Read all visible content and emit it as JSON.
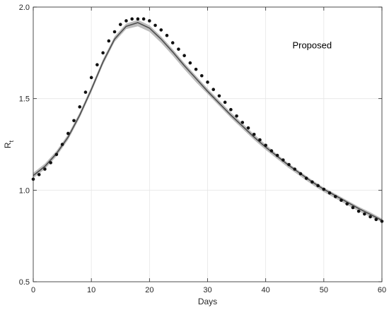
{
  "chart_data": {
    "type": "line",
    "title": "",
    "xlabel": "Days",
    "ylabel_main": "R",
    "ylabel_sub": "t",
    "annotation": "Proposed",
    "xlim": [
      0,
      60
    ],
    "ylim": [
      0.5,
      2.0
    ],
    "xticks": [
      0,
      10,
      20,
      30,
      40,
      50,
      60
    ],
    "yticks": [
      0.5,
      1.0,
      1.5,
      2.0
    ],
    "xtick_labels": [
      "0",
      "10",
      "20",
      "30",
      "40",
      "50",
      "60"
    ],
    "ytick_labels": [
      "0.5",
      "1.0",
      "1.5",
      "2.0"
    ],
    "grid": true,
    "colors": {
      "band": "#bdbdbd",
      "line": "#4d4d4d",
      "points": "#111111",
      "grid": "#e6e6e6",
      "axis": "#262626"
    },
    "series": [
      {
        "kind": "band",
        "x": [
          0,
          2,
          4,
          6,
          8,
          10,
          12,
          14,
          16,
          18,
          20,
          22,
          24,
          26,
          28,
          30,
          32,
          34,
          36,
          38,
          40,
          42,
          44,
          46,
          48,
          50,
          52,
          54,
          56,
          58,
          60
        ],
        "lower": [
          1.065,
          1.115,
          1.185,
          1.275,
          1.395,
          1.535,
          1.685,
          1.81,
          1.88,
          1.895,
          1.865,
          1.805,
          1.735,
          1.66,
          1.59,
          1.525,
          1.46,
          1.395,
          1.335,
          1.275,
          1.22,
          1.17,
          1.12,
          1.075,
          1.03,
          0.99,
          0.955,
          0.92,
          0.885,
          0.855,
          0.825
        ],
        "upper": [
          1.095,
          1.145,
          1.215,
          1.305,
          1.425,
          1.565,
          1.715,
          1.84,
          1.91,
          1.93,
          1.9,
          1.84,
          1.77,
          1.695,
          1.625,
          1.555,
          1.49,
          1.425,
          1.365,
          1.305,
          1.25,
          1.195,
          1.145,
          1.1,
          1.055,
          1.015,
          0.98,
          0.945,
          0.91,
          0.88,
          0.845
        ]
      },
      {
        "kind": "line",
        "x": [
          0,
          2,
          4,
          6,
          8,
          10,
          12,
          14,
          16,
          18,
          20,
          22,
          24,
          26,
          28,
          30,
          32,
          34,
          36,
          38,
          40,
          42,
          44,
          46,
          48,
          50,
          52,
          54,
          56,
          58,
          60
        ],
        "y": [
          1.08,
          1.13,
          1.2,
          1.29,
          1.41,
          1.55,
          1.7,
          1.825,
          1.895,
          1.915,
          1.885,
          1.825,
          1.755,
          1.68,
          1.61,
          1.54,
          1.475,
          1.41,
          1.35,
          1.29,
          1.235,
          1.185,
          1.135,
          1.09,
          1.045,
          1.005,
          0.97,
          0.935,
          0.9,
          0.868,
          0.835
        ]
      },
      {
        "kind": "points",
        "x": [
          0,
          1,
          2,
          3,
          4,
          5,
          6,
          7,
          8,
          9,
          10,
          11,
          12,
          13,
          14,
          15,
          16,
          17,
          18,
          19,
          20,
          21,
          22,
          23,
          24,
          25,
          26,
          27,
          28,
          29,
          30,
          31,
          32,
          33,
          34,
          35,
          36,
          37,
          38,
          39,
          40,
          41,
          42,
          43,
          44,
          45,
          46,
          47,
          48,
          49,
          50,
          51,
          52,
          53,
          54,
          55,
          56,
          57,
          58,
          59,
          60
        ],
        "y": [
          1.06,
          1.085,
          1.115,
          1.15,
          1.195,
          1.25,
          1.31,
          1.38,
          1.455,
          1.535,
          1.615,
          1.685,
          1.75,
          1.815,
          1.865,
          1.905,
          1.925,
          1.935,
          1.935,
          1.935,
          1.925,
          1.9,
          1.875,
          1.845,
          1.805,
          1.77,
          1.735,
          1.695,
          1.66,
          1.625,
          1.59,
          1.55,
          1.515,
          1.48,
          1.44,
          1.405,
          1.37,
          1.34,
          1.305,
          1.275,
          1.245,
          1.215,
          1.19,
          1.165,
          1.14,
          1.115,
          1.09,
          1.065,
          1.045,
          1.025,
          1.005,
          0.985,
          0.965,
          0.945,
          0.925,
          0.905,
          0.885,
          0.87,
          0.855,
          0.84,
          0.83
        ]
      }
    ]
  }
}
